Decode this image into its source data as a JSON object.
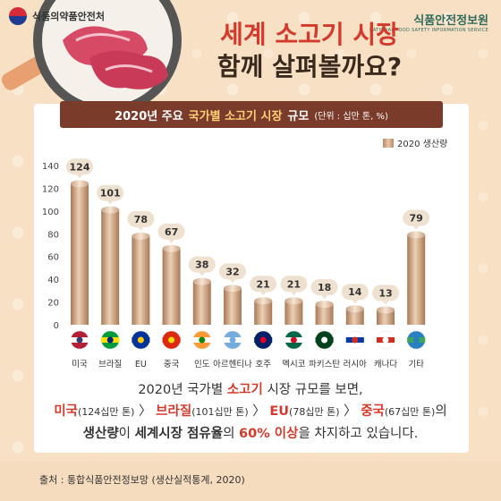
{
  "org_left": "식품의약품안전처",
  "org_right": {
    "name": "식품안전정보원",
    "sub": "NATIONAL FOOD SAFETY INFORMATION SERVICE"
  },
  "headline": {
    "line1": "세계 소고기 시장",
    "line2": "함께 살펴볼까요?"
  },
  "card_title": {
    "pre": "2020년 주요",
    "highlight": "국가별 소고기 시장",
    "post": "규모",
    "unit": "(단위 : 십만 톤, %)"
  },
  "chart_data": {
    "type": "bar",
    "categories": [
      "미국",
      "브라질",
      "EU",
      "중국",
      "인도",
      "아르헨티나",
      "호주",
      "멕시코",
      "파키스탄",
      "러시아",
      "캐나다",
      "기타"
    ],
    "series": [
      {
        "name": "2020 생산량",
        "values": [
          124,
          101,
          78,
          67,
          38,
          32,
          21,
          21,
          18,
          14,
          13,
          79
        ]
      }
    ],
    "y_ticks": [
      0,
      20,
      40,
      60,
      80,
      100,
      120,
      140
    ],
    "ylim": [
      0,
      140
    ],
    "legend_position": "top-right",
    "grid": false,
    "bar_color": "#c49a78"
  },
  "flags": [
    "usa-flag-icon",
    "brazil-flag-icon",
    "eu-flag-icon",
    "china-flag-icon",
    "india-flag-icon",
    "argentina-flag-icon",
    "australia-flag-icon",
    "mexico-flag-icon",
    "pakistan-flag-icon",
    "russia-flag-icon",
    "canada-flag-icon",
    "globe-icon"
  ],
  "summary": {
    "line1_pre": "2020년 국가별 ",
    "line1_hl": "소고기",
    "line1_post": " 시장 규모를 보면,",
    "c1": "미국",
    "v1": "(124십만 톤)",
    "sep": " 〉",
    "c2": "브라질",
    "v2": "(101십만 톤)",
    "c3": "EU",
    "v3": "(78십만 톤)",
    "c4": "중국",
    "v4": "(67십만 톤)",
    "line2_tail": "의",
    "l3a": "생산량",
    "l3b": "이 ",
    "l3c": "세계시장 점유율",
    "l3d": "의 ",
    "l3e": "60% 이상",
    "l3f": "을 차지하고 있습니다."
  },
  "source": "출처 : 통합식품안전정보망 (생산실적통계, 2020)"
}
